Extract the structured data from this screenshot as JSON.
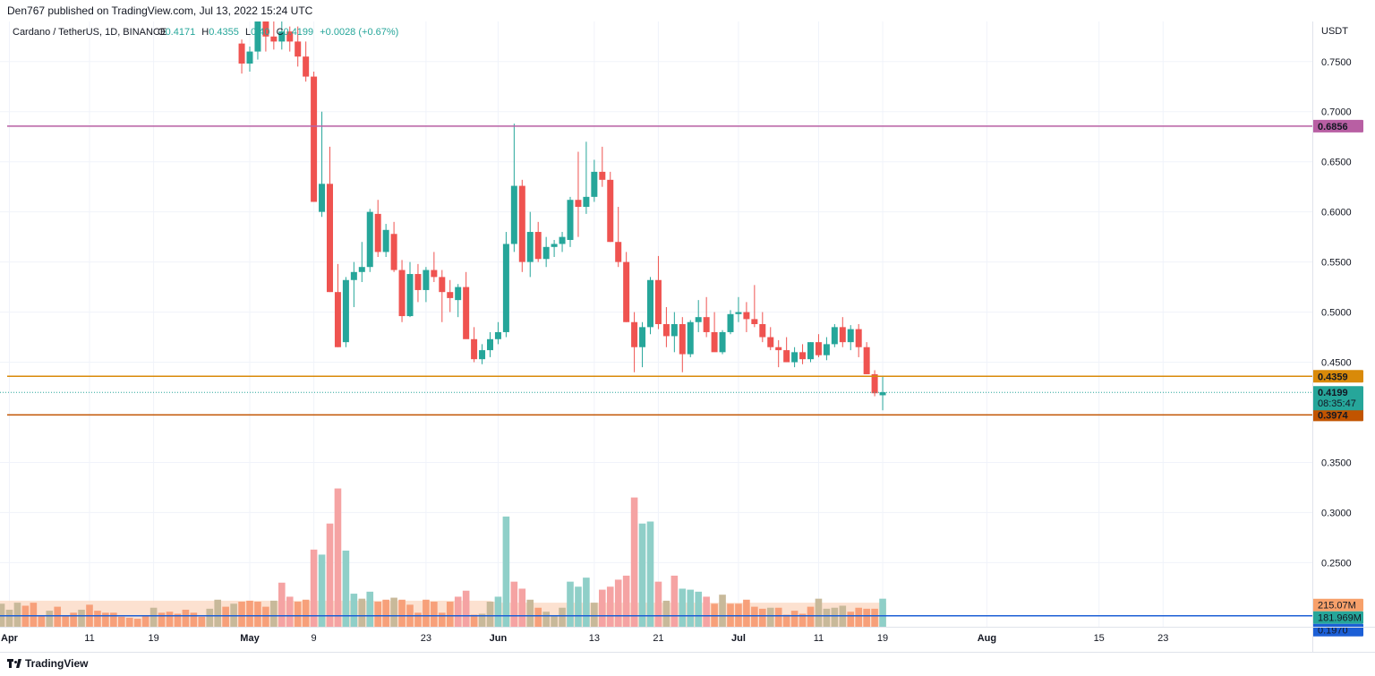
{
  "header": {
    "published": "Den767 published on TradingView.com, Jul 13, 2022 15:24 UTC"
  },
  "footer": {
    "logo_text": "TradingView"
  },
  "chart_data": {
    "type": "candlestick",
    "symbol": "Cardano / TetherUS, 1D, BINANCE",
    "ohlc_legend": {
      "o_label": "O",
      "o": "0.4171",
      "h_label": "H",
      "h": "0.4355",
      "l_label": "L",
      "l": "0.40",
      "c_label": "C",
      "c": "0.4199",
      "change": "+0.0028 (+0.67%)"
    },
    "currency": "USDT",
    "colors": {
      "up": "#26a69a",
      "down": "#ef5350",
      "vol_up": "#8fcfc8",
      "vol_down": "#f5a3a3",
      "vol_ma": "#f7c7a8",
      "vol_bar_old": "#f7a07a",
      "vol_bar_old2": "#c8b99a"
    },
    "y_range": [
      0.186,
      0.79
    ],
    "y_ticks": [
      {
        "v": 0.75,
        "label": "0.7500"
      },
      {
        "v": 0.7,
        "label": "0.7000"
      },
      {
        "v": 0.65,
        "label": "0.6500"
      },
      {
        "v": 0.6,
        "label": "0.6000"
      },
      {
        "v": 0.55,
        "label": "0.5500"
      },
      {
        "v": 0.5,
        "label": "0.5000"
      },
      {
        "v": 0.45,
        "label": "0.4500"
      },
      {
        "v": 0.35,
        "label": "0.3500"
      },
      {
        "v": 0.3,
        "label": "0.3000"
      },
      {
        "v": 0.25,
        "label": "0.2500"
      }
    ],
    "x_labels": [
      {
        "day": 0,
        "label": "Apr",
        "bold": true
      },
      {
        "day": 10,
        "label": "11"
      },
      {
        "day": 18,
        "label": "19"
      },
      {
        "day": 30,
        "label": "May",
        "bold": true
      },
      {
        "day": 38,
        "label": "9"
      },
      {
        "day": 52,
        "label": "23"
      },
      {
        "day": 61,
        "label": "Jun",
        "bold": true
      },
      {
        "day": 73,
        "label": "13"
      },
      {
        "day": 81,
        "label": "21"
      },
      {
        "day": 91,
        "label": "Jul",
        "bold": true
      },
      {
        "day": 101,
        "label": "11"
      },
      {
        "day": 109,
        "label": "19"
      },
      {
        "day": 122,
        "label": "Aug",
        "bold": true
      },
      {
        "day": 136,
        "label": "15"
      },
      {
        "day": 144,
        "label": "23"
      }
    ],
    "horizontal_levels": [
      {
        "name": "resistance-upper",
        "value": 0.6856,
        "label": "0.6856",
        "color": "#b85fa3"
      },
      {
        "name": "resistance-lower",
        "value": 0.4359,
        "label": "0.4359",
        "color": "#d98a09"
      },
      {
        "name": "support",
        "value": 0.3974,
        "label": "0.3974",
        "color": "#c25400"
      }
    ],
    "current_price": {
      "value": 0.4199,
      "label": "0.4199",
      "countdown": "08:35:47",
      "color": "#26a69a"
    },
    "volume_labels": [
      {
        "name": "volume-ma",
        "label": "215.07M",
        "color": "#f7a06a"
      },
      {
        "name": "volume-current",
        "label": "181.969M",
        "color": "#26a69a"
      },
      {
        "name": "level-0197",
        "label": "0.1970",
        "color": "#1c5fd6"
      }
    ],
    "volume_line_value": 0.197,
    "candles": [
      [
        29,
        0.768,
        0.772,
        0.738,
        0.748
      ],
      [
        30,
        0.748,
        0.765,
        0.74,
        0.76
      ],
      [
        31,
        0.76,
        0.792,
        0.752,
        0.79
      ],
      [
        32,
        0.79,
        0.795,
        0.76,
        0.775
      ],
      [
        33,
        0.775,
        0.79,
        0.762,
        0.77
      ],
      [
        34,
        0.77,
        0.792,
        0.762,
        0.78
      ],
      [
        35,
        0.78,
        0.785,
        0.76,
        0.77
      ],
      [
        36,
        0.77,
        0.785,
        0.745,
        0.755
      ],
      [
        37,
        0.755,
        0.77,
        0.73,
        0.735
      ],
      [
        38,
        0.735,
        0.74,
        0.61,
        0.61
      ],
      [
        39,
        0.6,
        0.7,
        0.595,
        0.628
      ],
      [
        40,
        0.628,
        0.665,
        0.52,
        0.52
      ],
      [
        41,
        0.52,
        0.548,
        0.465,
        0.465
      ],
      [
        42,
        0.47,
        0.535,
        0.465,
        0.532
      ],
      [
        43,
        0.532,
        0.55,
        0.505,
        0.54
      ],
      [
        44,
        0.54,
        0.57,
        0.53,
        0.545
      ],
      [
        45,
        0.545,
        0.603,
        0.54,
        0.6
      ],
      [
        46,
        0.598,
        0.612,
        0.555,
        0.56
      ],
      [
        47,
        0.56,
        0.588,
        0.555,
        0.582
      ],
      [
        48,
        0.578,
        0.59,
        0.54,
        0.542
      ],
      [
        49,
        0.542,
        0.552,
        0.49,
        0.496
      ],
      [
        50,
        0.496,
        0.55,
        0.495,
        0.538
      ],
      [
        51,
        0.538,
        0.548,
        0.51,
        0.522
      ],
      [
        52,
        0.522,
        0.545,
        0.51,
        0.542
      ],
      [
        53,
        0.542,
        0.56,
        0.53,
        0.535
      ],
      [
        54,
        0.535,
        0.542,
        0.49,
        0.52
      ],
      [
        55,
        0.52,
        0.532,
        0.5,
        0.514
      ],
      [
        56,
        0.512,
        0.528,
        0.495,
        0.525
      ],
      [
        57,
        0.525,
        0.54,
        0.475,
        0.473
      ],
      [
        58,
        0.473,
        0.485,
        0.45,
        0.453
      ],
      [
        59,
        0.453,
        0.468,
        0.448,
        0.462
      ],
      [
        60,
        0.462,
        0.48,
        0.455,
        0.473
      ],
      [
        61,
        0.473,
        0.49,
        0.468,
        0.48
      ],
      [
        62,
        0.48,
        0.58,
        0.475,
        0.568
      ],
      [
        63,
        0.568,
        0.688,
        0.56,
        0.626
      ],
      [
        64,
        0.626,
        0.632,
        0.54,
        0.55
      ],
      [
        65,
        0.55,
        0.6,
        0.535,
        0.58
      ],
      [
        66,
        0.58,
        0.59,
        0.55,
        0.553
      ],
      [
        67,
        0.553,
        0.575,
        0.545,
        0.565
      ],
      [
        68,
        0.565,
        0.572,
        0.555,
        0.568
      ],
      [
        69,
        0.568,
        0.58,
        0.56,
        0.575
      ],
      [
        70,
        0.572,
        0.615,
        0.565,
        0.612
      ],
      [
        71,
        0.612,
        0.66,
        0.575,
        0.605
      ],
      [
        72,
        0.605,
        0.67,
        0.598,
        0.615
      ],
      [
        73,
        0.615,
        0.652,
        0.61,
        0.64
      ],
      [
        74,
        0.64,
        0.665,
        0.625,
        0.632
      ],
      [
        75,
        0.632,
        0.64,
        0.57,
        0.57
      ],
      [
        76,
        0.57,
        0.605,
        0.545,
        0.55
      ],
      [
        77,
        0.55,
        0.56,
        0.49,
        0.49
      ],
      [
        78,
        0.49,
        0.5,
        0.44,
        0.465
      ],
      [
        79,
        0.465,
        0.49,
        0.445,
        0.485
      ],
      [
        80,
        0.485,
        0.535,
        0.478,
        0.532
      ],
      [
        81,
        0.532,
        0.556,
        0.483,
        0.488
      ],
      [
        82,
        0.488,
        0.505,
        0.465,
        0.476
      ],
      [
        83,
        0.476,
        0.5,
        0.46,
        0.488
      ],
      [
        84,
        0.488,
        0.495,
        0.44,
        0.458
      ],
      [
        85,
        0.458,
        0.492,
        0.455,
        0.49
      ],
      [
        86,
        0.49,
        0.512,
        0.48,
        0.495
      ],
      [
        87,
        0.495,
        0.515,
        0.475,
        0.48
      ],
      [
        88,
        0.48,
        0.5,
        0.462,
        0.46
      ],
      [
        89,
        0.46,
        0.482,
        0.458,
        0.48
      ],
      [
        90,
        0.48,
        0.502,
        0.478,
        0.498
      ],
      [
        91,
        0.498,
        0.515,
        0.49,
        0.5
      ],
      [
        92,
        0.5,
        0.51,
        0.48,
        0.493
      ],
      [
        93,
        0.493,
        0.527,
        0.485,
        0.488
      ],
      [
        94,
        0.488,
        0.5,
        0.47,
        0.475
      ],
      [
        95,
        0.475,
        0.485,
        0.462,
        0.465
      ],
      [
        96,
        0.465,
        0.472,
        0.445,
        0.462
      ],
      [
        97,
        0.462,
        0.475,
        0.45,
        0.45
      ],
      [
        98,
        0.45,
        0.465,
        0.445,
        0.46
      ],
      [
        99,
        0.46,
        0.468,
        0.448,
        0.453
      ],
      [
        100,
        0.453,
        0.47,
        0.45,
        0.47
      ],
      [
        101,
        0.47,
        0.478,
        0.455,
        0.457
      ],
      [
        102,
        0.457,
        0.475,
        0.452,
        0.468
      ],
      [
        103,
        0.468,
        0.488,
        0.465,
        0.485
      ],
      [
        104,
        0.485,
        0.495,
        0.465,
        0.47
      ],
      [
        105,
        0.47,
        0.487,
        0.462,
        0.483
      ],
      [
        106,
        0.483,
        0.488,
        0.455,
        0.465
      ],
      [
        107,
        0.465,
        0.47,
        0.438,
        0.438
      ],
      [
        108,
        0.438,
        0.442,
        0.416,
        0.419
      ],
      [
        109,
        0.417,
        0.436,
        0.402,
        0.42
      ]
    ],
    "volumes": [
      [
        -14,
        0.214,
        "d"
      ],
      [
        -13,
        0.198,
        "o"
      ],
      [
        -12,
        0.205,
        "d"
      ],
      [
        -11,
        0.216,
        "u"
      ],
      [
        -10,
        0.2,
        "d"
      ],
      [
        -9,
        0.21,
        "o"
      ],
      [
        -8,
        0.213,
        "d"
      ],
      [
        -7,
        0.196,
        "d"
      ],
      [
        -6,
        0.203,
        "o"
      ],
      [
        -5,
        0.201,
        "d"
      ],
      [
        -4,
        0.207,
        "d"
      ],
      [
        -3,
        0.196,
        "d"
      ],
      [
        -2,
        0.2,
        "d"
      ],
      [
        -1,
        0.209,
        "o"
      ],
      [
        0,
        0.203,
        "o"
      ],
      [
        1,
        0.21,
        "o"
      ],
      [
        2,
        0.207,
        "d"
      ],
      [
        3,
        0.21,
        "d"
      ],
      [
        4,
        0.197,
        "d"
      ],
      [
        5,
        0.202,
        "o"
      ],
      [
        6,
        0.206,
        "d"
      ],
      [
        7,
        0.197,
        "d"
      ],
      [
        8,
        0.2,
        "d"
      ],
      [
        9,
        0.203,
        "o"
      ],
      [
        10,
        0.208,
        "d"
      ],
      [
        11,
        0.202,
        "d"
      ],
      [
        12,
        0.2,
        "d"
      ],
      [
        13,
        0.2,
        "d"
      ],
      [
        14,
        0.196,
        "d"
      ],
      [
        15,
        0.195,
        "d"
      ],
      [
        16,
        0.194,
        "d"
      ],
      [
        17,
        0.197,
        "d"
      ],
      [
        18,
        0.205,
        "o"
      ],
      [
        19,
        0.2,
        "d"
      ],
      [
        20,
        0.201,
        "d"
      ],
      [
        21,
        0.199,
        "d"
      ],
      [
        22,
        0.203,
        "d"
      ],
      [
        23,
        0.2,
        "d"
      ],
      [
        24,
        0.196,
        "d"
      ],
      [
        25,
        0.204,
        "o"
      ],
      [
        26,
        0.213,
        "o"
      ],
      [
        27,
        0.206,
        "d"
      ],
      [
        28,
        0.209,
        "o"
      ],
      [
        29,
        0.211,
        "d"
      ],
      [
        30,
        0.212,
        "d"
      ],
      [
        31,
        0.211,
        "d"
      ],
      [
        32,
        0.206,
        "d"
      ],
      [
        33,
        0.212,
        "o"
      ],
      [
        34,
        0.23,
        "dv"
      ],
      [
        35,
        0.216,
        "dv"
      ],
      [
        36,
        0.211,
        "d"
      ],
      [
        37,
        0.213,
        "d"
      ],
      [
        38,
        0.263,
        "dv"
      ],
      [
        39,
        0.258,
        "uv"
      ],
      [
        40,
        0.289,
        "dv"
      ],
      [
        41,
        0.324,
        "dv"
      ],
      [
        42,
        0.262,
        "uv"
      ],
      [
        43,
        0.219,
        "uv"
      ],
      [
        44,
        0.214,
        "o"
      ],
      [
        45,
        0.221,
        "uv"
      ],
      [
        46,
        0.211,
        "d"
      ],
      [
        47,
        0.213,
        "d"
      ],
      [
        48,
        0.215,
        "o"
      ],
      [
        49,
        0.213,
        "d"
      ],
      [
        50,
        0.208,
        "d"
      ],
      [
        51,
        0.2,
        "d"
      ],
      [
        52,
        0.213,
        "d"
      ],
      [
        53,
        0.211,
        "d"
      ],
      [
        54,
        0.2,
        "d"
      ],
      [
        55,
        0.211,
        "d"
      ],
      [
        56,
        0.216,
        "dv"
      ],
      [
        57,
        0.222,
        "dv"
      ],
      [
        58,
        0.198,
        "d"
      ],
      [
        59,
        0.199,
        "o"
      ],
      [
        60,
        0.211,
        "o"
      ],
      [
        61,
        0.216,
        "uv"
      ],
      [
        62,
        0.296,
        "uv"
      ],
      [
        63,
        0.231,
        "dv"
      ],
      [
        64,
        0.224,
        "dv"
      ],
      [
        65,
        0.213,
        "o"
      ],
      [
        66,
        0.205,
        "d"
      ],
      [
        67,
        0.201,
        "o"
      ],
      [
        68,
        0.197,
        "o"
      ],
      [
        69,
        0.205,
        "o"
      ],
      [
        70,
        0.231,
        "uv"
      ],
      [
        71,
        0.226,
        "uv"
      ],
      [
        72,
        0.235,
        "uv"
      ],
      [
        73,
        0.21,
        "o"
      ],
      [
        74,
        0.223,
        "dv"
      ],
      [
        75,
        0.226,
        "dv"
      ],
      [
        76,
        0.233,
        "dv"
      ],
      [
        77,
        0.237,
        "dv"
      ],
      [
        78,
        0.315,
        "dv"
      ],
      [
        79,
        0.289,
        "uv"
      ],
      [
        80,
        0.291,
        "uv"
      ],
      [
        81,
        0.231,
        "dv"
      ],
      [
        82,
        0.212,
        "o"
      ],
      [
        83,
        0.237,
        "dv"
      ],
      [
        84,
        0.224,
        "uv"
      ],
      [
        85,
        0.223,
        "uv"
      ],
      [
        86,
        0.221,
        "uv"
      ],
      [
        87,
        0.216,
        "dv"
      ],
      [
        88,
        0.209,
        "d"
      ],
      [
        89,
        0.218,
        "o"
      ],
      [
        90,
        0.209,
        "d"
      ],
      [
        91,
        0.209,
        "d"
      ],
      [
        92,
        0.213,
        "d"
      ],
      [
        93,
        0.206,
        "d"
      ],
      [
        94,
        0.204,
        "d"
      ],
      [
        95,
        0.205,
        "o"
      ],
      [
        96,
        0.205,
        "d"
      ],
      [
        97,
        0.198,
        "d"
      ],
      [
        98,
        0.202,
        "d"
      ],
      [
        99,
        0.199,
        "d"
      ],
      [
        100,
        0.206,
        "d"
      ],
      [
        101,
        0.214,
        "o"
      ],
      [
        102,
        0.204,
        "o"
      ],
      [
        103,
        0.205,
        "o"
      ],
      [
        104,
        0.207,
        "o"
      ],
      [
        105,
        0.201,
        "d"
      ],
      [
        106,
        0.205,
        "d"
      ],
      [
        107,
        0.204,
        "d"
      ],
      [
        108,
        0.204,
        "d"
      ],
      [
        109,
        0.214,
        "uv"
      ]
    ]
  }
}
